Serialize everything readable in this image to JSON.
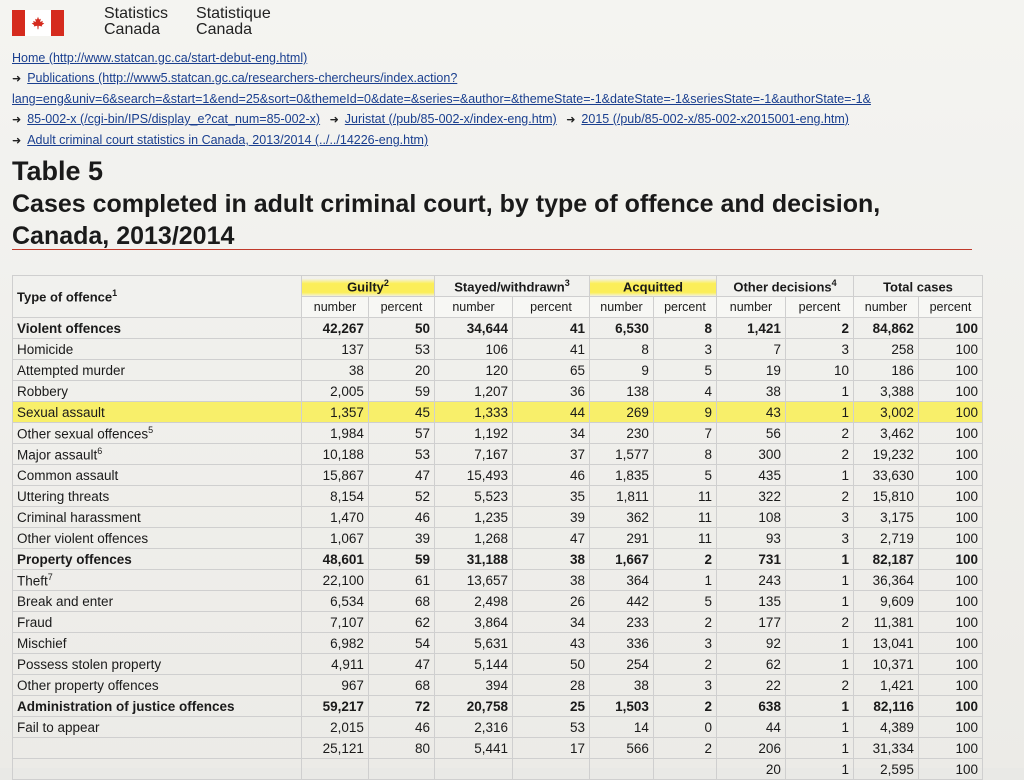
{
  "header": {
    "agency_en_line1": "Statistics",
    "agency_en_line2": "Canada",
    "agency_fr_line1": "Statistique",
    "agency_fr_line2": "Canada"
  },
  "breadcrumbs": [
    "Home (http://www.statcan.gc.ca/start-debut-eng.html)",
    "Publications (http://www5.statcan.gc.ca/researchers-chercheurs/index.action?",
    "lang=eng&univ=6&search=&start=1&end=25&sort=0&themeId=0&date=&series=&author=&themeState=-1&dateState=-1&seriesState=-1&authorState=-1&",
    "85-002-x (/cgi-bin/IPS/display_e?cat_num=85-002-x)",
    "Juristat (/pub/85-002-x/index-eng.htm)",
    "2015 (/pub/85-002-x/85-002-x2015001-eng.htm)",
    "Adult criminal court statistics in Canada, 2013/2014 (../../14226-eng.htm)"
  ],
  "table_number": "Table 5",
  "table_title": "Cases completed in adult criminal court, by type of offence and decision, Canada, 2013/2014",
  "columns": {
    "offence": "Type of offence",
    "offence_note": "1",
    "groups": [
      {
        "label": "Guilty",
        "note": "2"
      },
      {
        "label": "Stayed/withdrawn",
        "note": "3"
      },
      {
        "label": "Acquitted",
        "note": ""
      },
      {
        "label": "Other decisions",
        "note": "4"
      },
      {
        "label": "Total cases",
        "note": ""
      }
    ],
    "number": "number",
    "percent": "percent"
  },
  "rows": [
    {
      "label": "Violent offences",
      "note": "",
      "bold": true,
      "hl": false,
      "v": [
        "42,267",
        "50",
        "34,644",
        "41",
        "6,530",
        "8",
        "1,421",
        "2",
        "84,862",
        "100"
      ]
    },
    {
      "label": "Homicide",
      "note": "",
      "bold": false,
      "hl": false,
      "v": [
        "137",
        "53",
        "106",
        "41",
        "8",
        "3",
        "7",
        "3",
        "258",
        "100"
      ]
    },
    {
      "label": "Attempted murder",
      "note": "",
      "bold": false,
      "hl": false,
      "v": [
        "38",
        "20",
        "120",
        "65",
        "9",
        "5",
        "19",
        "10",
        "186",
        "100"
      ]
    },
    {
      "label": "Robbery",
      "note": "",
      "bold": false,
      "hl": false,
      "v": [
        "2,005",
        "59",
        "1,207",
        "36",
        "138",
        "4",
        "38",
        "1",
        "3,388",
        "100"
      ]
    },
    {
      "label": "Sexual assault",
      "note": "",
      "bold": false,
      "hl": true,
      "v": [
        "1,357",
        "45",
        "1,333",
        "44",
        "269",
        "9",
        "43",
        "1",
        "3,002",
        "100"
      ]
    },
    {
      "label": "Other sexual offences",
      "note": "5",
      "bold": false,
      "hl": false,
      "v": [
        "1,984",
        "57",
        "1,192",
        "34",
        "230",
        "7",
        "56",
        "2",
        "3,462",
        "100"
      ]
    },
    {
      "label": "Major assault",
      "note": "6",
      "bold": false,
      "hl": false,
      "v": [
        "10,188",
        "53",
        "7,167",
        "37",
        "1,577",
        "8",
        "300",
        "2",
        "19,232",
        "100"
      ]
    },
    {
      "label": "Common assault",
      "note": "",
      "bold": false,
      "hl": false,
      "v": [
        "15,867",
        "47",
        "15,493",
        "46",
        "1,835",
        "5",
        "435",
        "1",
        "33,630",
        "100"
      ]
    },
    {
      "label": "Uttering threats",
      "note": "",
      "bold": false,
      "hl": false,
      "v": [
        "8,154",
        "52",
        "5,523",
        "35",
        "1,811",
        "11",
        "322",
        "2",
        "15,810",
        "100"
      ]
    },
    {
      "label": "Criminal harassment",
      "note": "",
      "bold": false,
      "hl": false,
      "v": [
        "1,470",
        "46",
        "1,235",
        "39",
        "362",
        "11",
        "108",
        "3",
        "3,175",
        "100"
      ]
    },
    {
      "label": "Other violent offences",
      "note": "",
      "bold": false,
      "hl": false,
      "v": [
        "1,067",
        "39",
        "1,268",
        "47",
        "291",
        "11",
        "93",
        "3",
        "2,719",
        "100"
      ]
    },
    {
      "label": "Property offences",
      "note": "",
      "bold": true,
      "hl": false,
      "v": [
        "48,601",
        "59",
        "31,188",
        "38",
        "1,667",
        "2",
        "731",
        "1",
        "82,187",
        "100"
      ]
    },
    {
      "label": "Theft",
      "note": "7",
      "bold": false,
      "hl": false,
      "v": [
        "22,100",
        "61",
        "13,657",
        "38",
        "364",
        "1",
        "243",
        "1",
        "36,364",
        "100"
      ]
    },
    {
      "label": "Break and enter",
      "note": "",
      "bold": false,
      "hl": false,
      "v": [
        "6,534",
        "68",
        "2,498",
        "26",
        "442",
        "5",
        "135",
        "1",
        "9,609",
        "100"
      ]
    },
    {
      "label": "Fraud",
      "note": "",
      "bold": false,
      "hl": false,
      "v": [
        "7,107",
        "62",
        "3,864",
        "34",
        "233",
        "2",
        "177",
        "2",
        "11,381",
        "100"
      ]
    },
    {
      "label": "Mischief",
      "note": "",
      "bold": false,
      "hl": false,
      "v": [
        "6,982",
        "54",
        "5,631",
        "43",
        "336",
        "3",
        "92",
        "1",
        "13,041",
        "100"
      ]
    },
    {
      "label": "Possess stolen property",
      "note": "",
      "bold": false,
      "hl": false,
      "v": [
        "4,911",
        "47",
        "5,144",
        "50",
        "254",
        "2",
        "62",
        "1",
        "10,371",
        "100"
      ]
    },
    {
      "label": "Other property offences",
      "note": "",
      "bold": false,
      "hl": false,
      "v": [
        "967",
        "68",
        "394",
        "28",
        "38",
        "3",
        "22",
        "2",
        "1,421",
        "100"
      ]
    },
    {
      "label": "Administration of justice offences",
      "note": "",
      "bold": true,
      "hl": false,
      "v": [
        "59,217",
        "72",
        "20,758",
        "25",
        "1,503",
        "2",
        "638",
        "1",
        "82,116",
        "100"
      ]
    },
    {
      "label": "Fail to appear",
      "note": "",
      "bold": false,
      "hl": false,
      "v": [
        "2,015",
        "46",
        "2,316",
        "53",
        "14",
        "0",
        "44",
        "1",
        "4,389",
        "100"
      ]
    },
    {
      "label": "",
      "note": "",
      "bold": false,
      "hl": false,
      "v": [
        "25,121",
        "80",
        "5,441",
        "17",
        "566",
        "2",
        "206",
        "1",
        "31,334",
        "100"
      ]
    },
    {
      "label": "",
      "note": "",
      "bold": false,
      "hl": false,
      "v": [
        "",
        "",
        "",
        "",
        "",
        "",
        "20",
        "1",
        "2,595",
        "100"
      ]
    }
  ],
  "colors": {
    "highlight": "#fff000",
    "flag_red": "#d52b1e",
    "link": "#1a3f8f",
    "rule": "#c0392b"
  }
}
